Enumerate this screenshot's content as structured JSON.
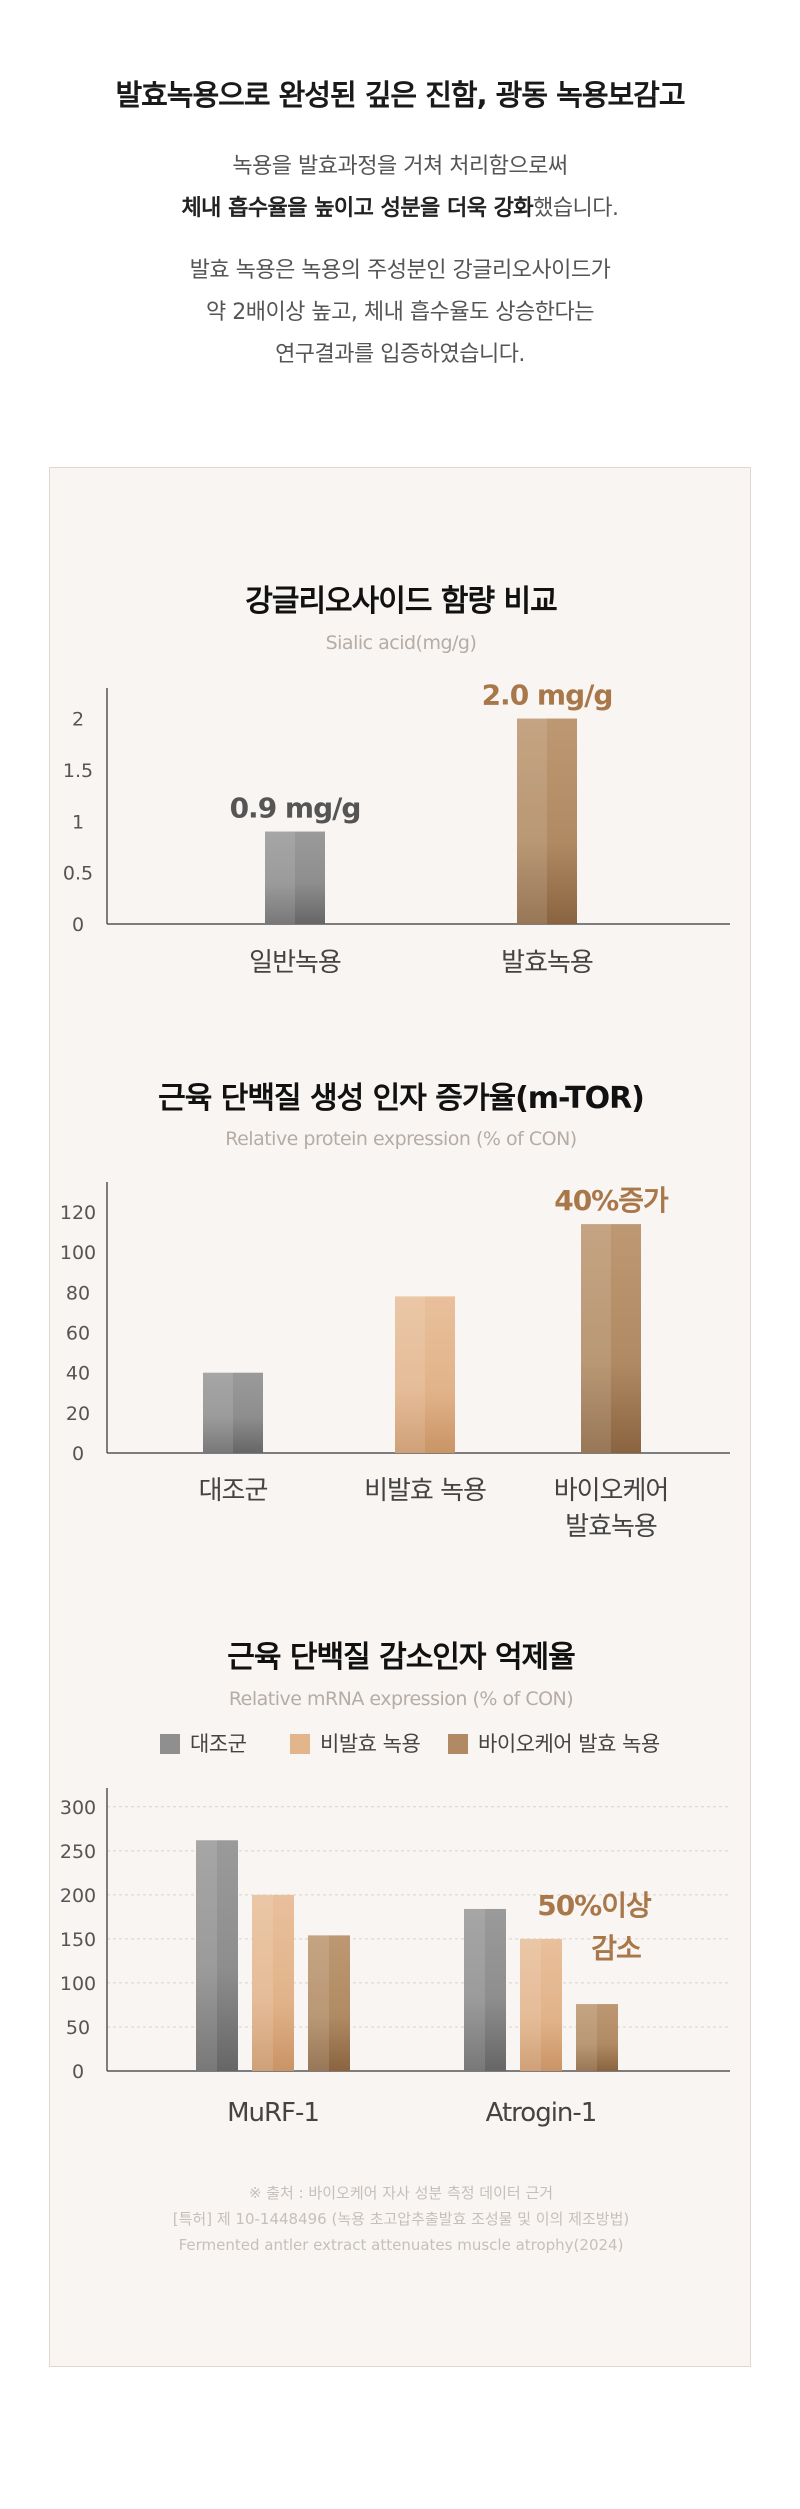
{
  "header": {
    "title": "발효녹용으로 완성된 깊은 진함, 광동 녹용보감고",
    "line1": "녹용을 발효과정을 거쳐 처리함으로써",
    "line2_bold": "체내 흡수율을 높이고 성분을 더욱 강화",
    "line2_rest": "했습니다.",
    "para2": [
      "발효 녹용은 녹용의 주성분인 강글리오사이드가",
      "약 2배이상 높고, 체내 흡수율도 상승한다는",
      "연구결과를 입증하였습니다."
    ]
  },
  "colors": {
    "gray": "#8f8f8f",
    "peach": "#e2b58c",
    "brown": "#b08a63",
    "accent": "#a8784a"
  },
  "chart_data": [
    {
      "type": "bar",
      "title": "강글리오사이드 함량 비교",
      "subtitle": "Sialic acid(mg/g)",
      "categories": [
        "일반녹용",
        "발효녹용"
      ],
      "values": [
        0.9,
        2.0
      ],
      "bar_colors": [
        "gray",
        "brown"
      ],
      "data_labels": [
        "0.9 mg/g",
        "2.0 mg/g"
      ],
      "data_label_colors": [
        "#555555",
        "#a8784a"
      ],
      "yticks": [
        "0",
        "0.5",
        "1",
        "1.5",
        "2"
      ],
      "ylim": [
        0,
        2.2
      ]
    },
    {
      "type": "bar",
      "title": "근육 단백질 생성 인자 증가율(m-TOR)",
      "subtitle": "Relative protein expression (% of CON)",
      "categories": [
        "대조군",
        "비발효 녹용",
        "바이오케어\n발효녹용"
      ],
      "values": [
        40,
        78,
        114
      ],
      "bar_colors": [
        "gray",
        "peach",
        "brown"
      ],
      "data_labels": [
        "",
        "",
        "40%증가"
      ],
      "data_label_colors": [
        "",
        "",
        "#a8784a"
      ],
      "yticks": [
        "0",
        "20",
        "40",
        "60",
        "80",
        "100",
        "120"
      ],
      "ylim": [
        0,
        130
      ]
    },
    {
      "type": "bar",
      "title": "근육 단백질 감소인자 억제율",
      "subtitle": "Relative mRNA expression (% of CON)",
      "legend": [
        {
          "label": "대조군",
          "color": "gray"
        },
        {
          "label": "비발효 녹용",
          "color": "peach"
        },
        {
          "label": "바이오케어 발효 녹용",
          "color": "brown"
        }
      ],
      "categories": [
        "MuRF-1",
        "Atrogin-1"
      ],
      "series": [
        {
          "name": "대조군",
          "values": [
            262,
            184
          ]
        },
        {
          "name": "비발효 녹용",
          "values": [
            200,
            150
          ]
        },
        {
          "name": "바이오케어 발효 녹용",
          "values": [
            154,
            76
          ]
        }
      ],
      "annotation": [
        "50%이상",
        "감소"
      ],
      "yticks": [
        "0",
        "50",
        "100",
        "150",
        "200",
        "250",
        "300"
      ],
      "ylim": [
        0,
        310
      ],
      "grid": true
    }
  ],
  "source": [
    "※ 출처 : 바이오케어 자사 성분 측정 데이터 근거",
    "[특허] 제 10-1448496 (녹용 초고압추출발효 조성물 및 이의 제조방법)",
    "Fermented antler extract attenuates muscle atrophy(2024)"
  ]
}
